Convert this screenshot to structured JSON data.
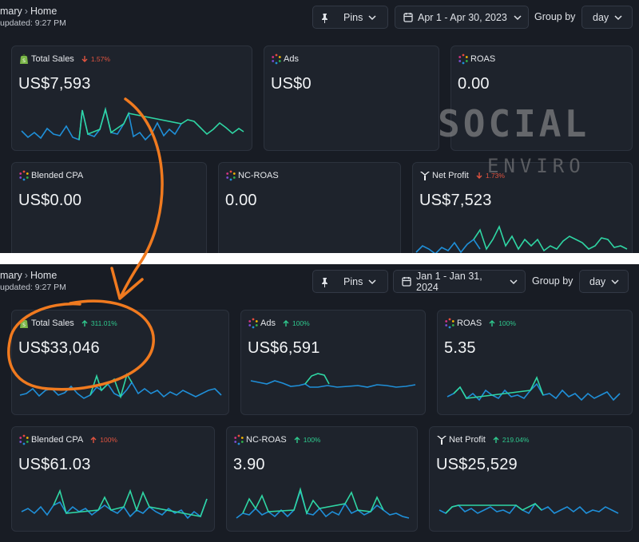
{
  "colors": {
    "background": "#181c24",
    "card": "#1e232c",
    "spark_blue": "#1f8fd8",
    "spark_teal": "#2fd6a4",
    "delta_down": "#e0533f",
    "delta_up_green": "#2fc98e",
    "annotation_orange": "#f07a1f"
  },
  "top": {
    "breadcrumb": {
      "parent": "mary",
      "current": "Home"
    },
    "updated": "updated: 9:27 PM",
    "pins_label": "Pins",
    "date_range": "Apr 1 - Apr 30, 2023",
    "group_by_label": "Group by",
    "group_by_value": "day",
    "cards": {
      "total_sales": {
        "title": "Total Sales",
        "delta": "1.57%",
        "value": "US$7,593",
        "icon": "shopify-icon"
      },
      "ads": {
        "title": "Ads",
        "value": "US$0",
        "icon": "ads-dots-icon"
      },
      "roas": {
        "title": "ROAS",
        "value": "0.00",
        "icon": "roas-dots-icon"
      },
      "blended_cpa": {
        "title": "Blended CPA",
        "value": "US$0.00",
        "icon": "cpa-dots-icon"
      },
      "nc_roas": {
        "title": "NC-ROAS",
        "value": "0.00",
        "icon": "ncroas-dots-icon"
      },
      "net_profit": {
        "title": "Net Profit",
        "delta": "1.73%",
        "value": "US$7,523",
        "icon": "net-profit-icon"
      }
    }
  },
  "bottom": {
    "breadcrumb": {
      "parent": "mary",
      "current": "Home"
    },
    "updated": "updated: 9:27 PM",
    "pins_label": "Pins",
    "date_range": "Jan 1 - Jan 31, 2024",
    "group_by_label": "Group by",
    "group_by_value": "day",
    "cards": {
      "total_sales": {
        "title": "Total Sales",
        "delta": "311.01%",
        "value": "US$33,046",
        "icon": "shopify-icon"
      },
      "ads": {
        "title": "Ads",
        "delta": "100%",
        "value": "US$6,591",
        "icon": "ads-dots-icon"
      },
      "roas": {
        "title": "ROAS",
        "delta": "100%",
        "value": "5.35",
        "icon": "roas-dots-icon"
      },
      "blended_cpa": {
        "title": "Blended CPA",
        "delta": "100%",
        "value": "US$61.03",
        "icon": "cpa-dots-icon"
      },
      "nc_roas": {
        "title": "NC-ROAS",
        "delta": "100%",
        "value": "3.90",
        "icon": "ncroas-dots-icon"
      },
      "net_profit": {
        "title": "Net Profit",
        "delta": "219.04%",
        "value": "US$25,529",
        "icon": "net-profit-icon"
      }
    }
  },
  "watermark": {
    "line1": "SOCIAL",
    "line2": "ENVIRO"
  }
}
